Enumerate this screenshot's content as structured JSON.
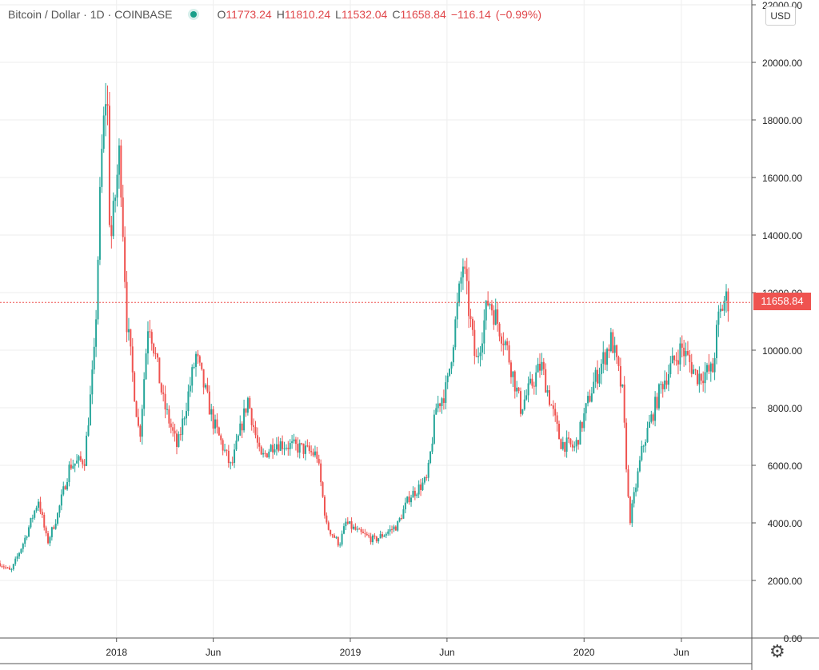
{
  "header": {
    "symbol": "Bitcoin / Dollar",
    "interval": "1D",
    "exchange": "COINBASE",
    "open_label": "O",
    "open": "11773.24",
    "high_label": "H",
    "high": "11810.24",
    "low_label": "L",
    "low": "11532.04",
    "close_label": "C",
    "close": "11658.84",
    "change": "−116.14",
    "change_pct": "(−0.99%)"
  },
  "currency_button": "USD",
  "last_price_label": "11658.84",
  "colors": {
    "up": "#26a69a",
    "down": "#ef5350",
    "grid": "#eeeeee",
    "axis": "#555555",
    "price_line": "#ef5350"
  },
  "icons": {
    "settings": "gear-icon",
    "status": "status-dot-icon"
  },
  "chart_data": {
    "type": "candlestick",
    "title": "Bitcoin / Dollar · 1D · COINBASE",
    "y_ticks": [
      "0.00",
      "2000.00",
      "4000.00",
      "6000.00",
      "8000.00",
      "10000.00",
      "12000.00",
      "14000.00",
      "16000.00",
      "18000.00",
      "20000.00",
      "22000.00"
    ],
    "x_ticks": [
      "2018",
      "Jun",
      "2019",
      "Jun",
      "2020",
      "Jun"
    ],
    "x_tick_dates": [
      "2018-01-01",
      "2018-06-01",
      "2019-01-01",
      "2019-06-01",
      "2020-01-01",
      "2020-06-01"
    ],
    "x_range": [
      "2017-07-03",
      "2020-08-15"
    ],
    "ylim": [
      0,
      22000
    ],
    "grid": true,
    "last_price": 11658.84,
    "series": [
      {
        "name": "BTCUSD",
        "approx_close": [
          [
            "2017-07-03",
            2600
          ],
          [
            "2017-07-20",
            2300
          ],
          [
            "2017-08-10",
            3400
          ],
          [
            "2017-09-01",
            4800
          ],
          [
            "2017-09-15",
            3300
          ],
          [
            "2017-10-01",
            4300
          ],
          [
            "2017-10-20",
            6000
          ],
          [
            "2017-11-12",
            6200
          ],
          [
            "2017-11-28",
            10000
          ],
          [
            "2017-12-08",
            16500
          ],
          [
            "2017-12-17",
            19500
          ],
          [
            "2017-12-22",
            13500
          ],
          [
            "2018-01-06",
            17000
          ],
          [
            "2018-01-17",
            11000
          ],
          [
            "2018-02-06",
            6900
          ],
          [
            "2018-02-20",
            11200
          ],
          [
            "2018-03-15",
            8200
          ],
          [
            "2018-04-06",
            6600
          ],
          [
            "2018-05-05",
            9800
          ],
          [
            "2018-06-01",
            7500
          ],
          [
            "2018-06-29",
            5900
          ],
          [
            "2018-07-25",
            8300
          ],
          [
            "2018-08-14",
            6200
          ],
          [
            "2018-09-05",
            6800
          ],
          [
            "2018-10-15",
            6600
          ],
          [
            "2018-11-10",
            6350
          ],
          [
            "2018-11-25",
            3900
          ],
          [
            "2018-12-15",
            3250
          ],
          [
            "2018-12-25",
            4000
          ],
          [
            "2019-01-15",
            3650
          ],
          [
            "2019-02-08",
            3400
          ],
          [
            "2019-03-15",
            3900
          ],
          [
            "2019-04-03",
            4900
          ],
          [
            "2019-05-01",
            5500
          ],
          [
            "2019-05-15",
            8000
          ],
          [
            "2019-06-01",
            8700
          ],
          [
            "2019-06-26",
            13000
          ],
          [
            "2019-07-16",
            9500
          ],
          [
            "2019-08-05",
            11800
          ],
          [
            "2019-09-01",
            10200
          ],
          [
            "2019-09-24",
            8000
          ],
          [
            "2019-10-26",
            9500
          ],
          [
            "2019-11-25",
            6800
          ],
          [
            "2019-12-18",
            6600
          ],
          [
            "2020-01-15",
            8800
          ],
          [
            "2020-02-13",
            10400
          ],
          [
            "2020-03-01",
            8500
          ],
          [
            "2020-03-12",
            4000
          ],
          [
            "2020-04-01",
            6600
          ],
          [
            "2020-05-01",
            8800
          ],
          [
            "2020-06-01",
            10100
          ],
          [
            "2020-06-25",
            9100
          ],
          [
            "2020-07-20",
            9300
          ],
          [
            "2020-07-28",
            11000
          ],
          [
            "2020-08-08",
            11800
          ],
          [
            "2020-08-15",
            11659
          ]
        ]
      }
    ]
  }
}
